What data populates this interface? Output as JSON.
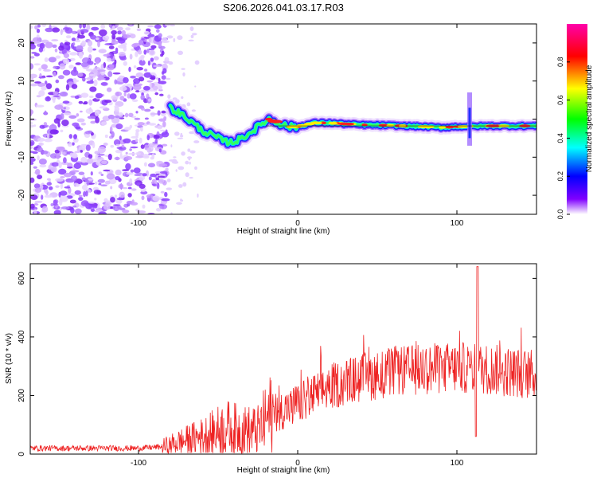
{
  "title": "S206.2026.041.03.17.R03",
  "chart_data": [
    {
      "type": "heatmap",
      "name": "spectrogram",
      "xlabel": "Height of straight line (km)",
      "ylabel": "Frequency (Hz)",
      "xlim": [
        -168,
        150
      ],
      "ylim": [
        -25,
        25
      ],
      "xticks": [
        -100,
        0,
        100
      ],
      "yticks": [
        -20,
        -10,
        0,
        10,
        20
      ],
      "colorbar": {
        "label": "Normalized spectral amplitude",
        "range": [
          0,
          1
        ],
        "ticks": [
          "0.0",
          "0.2",
          "0.4",
          "0.6",
          "0.8"
        ]
      },
      "noise_region_x": [
        -168,
        -82
      ],
      "signal_track": [
        {
          "x": -80,
          "y": 3
        },
        {
          "x": -72,
          "y": 1
        },
        {
          "x": -66,
          "y": -1
        },
        {
          "x": -60,
          "y": -3
        },
        {
          "x": -55,
          "y": -4
        },
        {
          "x": -50,
          "y": -5
        },
        {
          "x": -45,
          "y": -6
        },
        {
          "x": -40,
          "y": -6
        },
        {
          "x": -35,
          "y": -5
        },
        {
          "x": -28,
          "y": -3
        },
        {
          "x": -22,
          "y": -1
        },
        {
          "x": -18,
          "y": 0
        },
        {
          "x": -12,
          "y": -1
        },
        {
          "x": -6,
          "y": -2
        },
        {
          "x": 0,
          "y": -2
        },
        {
          "x": 10,
          "y": -1
        },
        {
          "x": 20,
          "y": -1
        },
        {
          "x": 40,
          "y": -1.5
        },
        {
          "x": 60,
          "y": -1.7
        },
        {
          "x": 80,
          "y": -2
        },
        {
          "x": 90,
          "y": -2.2
        },
        {
          "x": 100,
          "y": -2
        },
        {
          "x": 120,
          "y": -1.8
        },
        {
          "x": 150,
          "y": -1.8
        }
      ]
    },
    {
      "type": "line",
      "name": "snr",
      "xlabel": "Height of straight line (km)",
      "ylabel": "SNR (10 * v/v)",
      "xlim": [
        -168,
        150
      ],
      "ylim": [
        0,
        650
      ],
      "xticks": [
        -100,
        0,
        100
      ],
      "yticks": [
        0,
        200,
        400,
        600
      ],
      "color": "#ee2222",
      "trend": [
        {
          "x": -168,
          "y": 20
        },
        {
          "x": -100,
          "y": 20
        },
        {
          "x": -85,
          "y": 25
        },
        {
          "x": -75,
          "y": 40
        },
        {
          "x": -60,
          "y": 60
        },
        {
          "x": -45,
          "y": 90
        },
        {
          "x": -35,
          "y": 80
        },
        {
          "x": -25,
          "y": 80
        },
        {
          "x": -18,
          "y": 130
        },
        {
          "x": -10,
          "y": 150
        },
        {
          "x": 0,
          "y": 170
        },
        {
          "x": 10,
          "y": 200
        },
        {
          "x": 20,
          "y": 230
        },
        {
          "x": 40,
          "y": 260
        },
        {
          "x": 60,
          "y": 280
        },
        {
          "x": 80,
          "y": 290
        },
        {
          "x": 100,
          "y": 295
        },
        {
          "x": 120,
          "y": 290
        },
        {
          "x": 150,
          "y": 270
        }
      ],
      "spike": {
        "x": 113,
        "peak": 640,
        "dip": 60
      }
    }
  ]
}
